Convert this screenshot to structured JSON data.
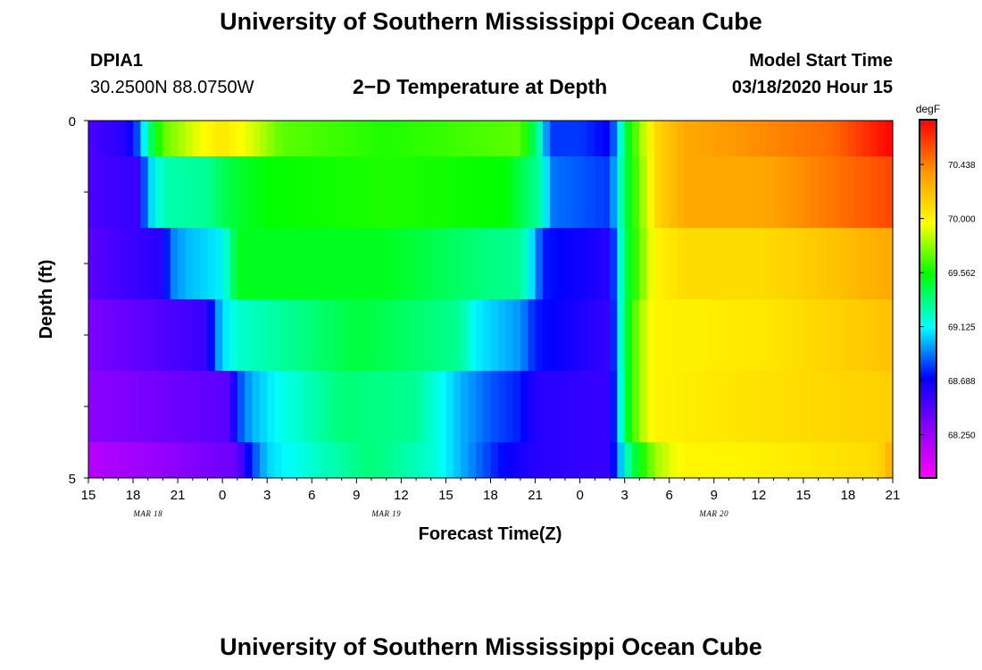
{
  "page": {
    "title_top": "University of Southern Mississippi Ocean Cube",
    "title_bottom": "University of Southern Mississippi Ocean Cube",
    "station_id": "DPIA1",
    "station_coords": "30.2500N 88.0750W",
    "plot_title": "2−D Temperature at Depth",
    "model_start_label": "Model Start Time",
    "model_start_value": "03/18/2020 Hour 15"
  },
  "chart_data": {
    "type": "heatmap",
    "title": "2−D Temperature at Depth",
    "xlabel": "Forecast Time(Z)",
    "ylabel": "Depth (ft)",
    "ylim": [
      0,
      5
    ],
    "y_tick_labels": [
      "0",
      "5"
    ],
    "x_tick_labels": [
      "15",
      "18",
      "21",
      "0",
      "3",
      "6",
      "9",
      "12",
      "15",
      "18",
      "21",
      "0",
      "3",
      "6",
      "9",
      "12",
      "15",
      "18",
      "21"
    ],
    "date_labels": [
      {
        "text": "MAR 18",
        "x_hours": 4
      },
      {
        "text": "MAR 19",
        "x_hours": 20
      },
      {
        "text": "MAR 20",
        "x_hours": 42
      }
    ],
    "x_hours_range": [
      0,
      54
    ],
    "colorbar": {
      "unit": "degF",
      "range": [
        67.9,
        70.8
      ],
      "tick_labels": [
        "70.438",
        "70.000",
        "69.562",
        "69.125",
        "68.688",
        "68.250"
      ],
      "tick_values": [
        70.438,
        70.0,
        69.562,
        69.125,
        68.688,
        68.25
      ]
    },
    "depth_bands": [
      0.5,
      1.5,
      2.5,
      3.5,
      4.5,
      5.0
    ],
    "series": [
      {
        "name": "depth 0-0.5 ft",
        "points": [
          [
            0,
            68.5
          ],
          [
            2.5,
            68.6
          ],
          [
            3.5,
            68.9
          ],
          [
            4,
            69.3
          ],
          [
            5,
            69.7
          ],
          [
            7,
            69.9
          ],
          [
            9,
            70.05
          ],
          [
            11,
            69.9
          ],
          [
            13,
            69.7
          ],
          [
            20,
            69.6
          ],
          [
            29,
            69.7
          ],
          [
            30.2,
            69.3
          ],
          [
            31,
            68.8
          ],
          [
            33,
            68.8
          ],
          [
            35,
            68.7
          ],
          [
            35.5,
            69.0
          ],
          [
            36,
            69.4
          ],
          [
            36.5,
            69.6
          ],
          [
            38,
            70.1
          ],
          [
            40,
            70.3
          ],
          [
            45,
            70.4
          ],
          [
            50,
            70.5
          ],
          [
            54,
            70.8
          ]
        ]
      },
      {
        "name": "depth 0.5-1.5 ft",
        "points": [
          [
            0,
            68.5
          ],
          [
            3.3,
            68.55
          ],
          [
            4,
            69.0
          ],
          [
            5,
            69.25
          ],
          [
            8,
            69.3
          ],
          [
            9.5,
            69.45
          ],
          [
            12,
            69.55
          ],
          [
            20,
            69.6
          ],
          [
            28,
            69.55
          ],
          [
            30.5,
            69.25
          ],
          [
            31,
            68.9
          ],
          [
            35,
            68.8
          ],
          [
            35.5,
            69.1
          ],
          [
            36,
            69.4
          ],
          [
            37.5,
            69.9
          ],
          [
            38,
            70.1
          ],
          [
            40,
            70.3
          ],
          [
            45,
            70.3
          ],
          [
            48,
            70.4
          ],
          [
            54,
            70.6
          ]
        ]
      },
      {
        "name": "depth 1.5-2.5 ft",
        "points": [
          [
            0,
            68.45
          ],
          [
            5,
            68.6
          ],
          [
            5.5,
            68.9
          ],
          [
            6.5,
            69.0
          ],
          [
            9,
            69.1
          ],
          [
            9.5,
            69.3
          ],
          [
            10,
            69.5
          ],
          [
            20,
            69.5
          ],
          [
            26,
            69.35
          ],
          [
            29,
            69.3
          ],
          [
            30,
            69.0
          ],
          [
            30.5,
            68.75
          ],
          [
            35,
            68.6
          ],
          [
            35.5,
            69.0
          ],
          [
            36,
            69.4
          ],
          [
            38,
            70.0
          ],
          [
            40,
            70.1
          ],
          [
            45,
            70.1
          ],
          [
            48,
            70.15
          ],
          [
            54,
            70.3
          ]
        ]
      },
      {
        "name": "depth 2.5-3.5 ft",
        "points": [
          [
            0,
            68.35
          ],
          [
            8,
            68.55
          ],
          [
            8.5,
            68.9
          ],
          [
            9,
            69.05
          ],
          [
            10,
            69.2
          ],
          [
            15,
            69.35
          ],
          [
            18,
            69.45
          ],
          [
            25,
            69.3
          ],
          [
            26,
            69.1
          ],
          [
            29,
            68.95
          ],
          [
            30,
            68.75
          ],
          [
            35,
            68.55
          ],
          [
            35.5,
            69.0
          ],
          [
            36,
            69.4
          ],
          [
            37,
            69.8
          ],
          [
            38,
            70.0
          ],
          [
            45,
            70.05
          ],
          [
            54,
            70.2
          ]
        ]
      },
      {
        "name": "depth 3.5-4.5 ft",
        "points": [
          [
            0,
            68.3
          ],
          [
            9.5,
            68.45
          ],
          [
            10,
            68.8
          ],
          [
            11,
            69.0
          ],
          [
            13,
            69.15
          ],
          [
            15,
            69.25
          ],
          [
            17,
            69.35
          ],
          [
            22,
            69.3
          ],
          [
            25,
            69.0
          ],
          [
            27,
            68.85
          ],
          [
            29,
            68.75
          ],
          [
            30,
            68.6
          ],
          [
            35,
            68.55
          ],
          [
            35.5,
            68.95
          ],
          [
            36,
            69.4
          ],
          [
            37,
            69.8
          ],
          [
            38,
            70.0
          ],
          [
            42,
            70.05
          ],
          [
            54,
            70.15
          ]
        ]
      },
      {
        "name": "depth 4.5-5 ft",
        "points": [
          [
            0,
            68.15
          ],
          [
            10,
            68.4
          ],
          [
            11,
            68.8
          ],
          [
            12,
            69.05
          ],
          [
            15,
            69.2
          ],
          [
            19,
            69.35
          ],
          [
            23,
            69.2
          ],
          [
            26,
            68.9
          ],
          [
            28,
            68.7
          ],
          [
            30,
            68.6
          ],
          [
            35,
            68.55
          ],
          [
            35.5,
            68.9
          ],
          [
            36.5,
            69.4
          ],
          [
            38,
            69.8
          ],
          [
            40,
            70.0
          ],
          [
            44,
            70.0
          ],
          [
            53,
            70.1
          ],
          [
            54,
            70.3
          ]
        ]
      }
    ]
  }
}
